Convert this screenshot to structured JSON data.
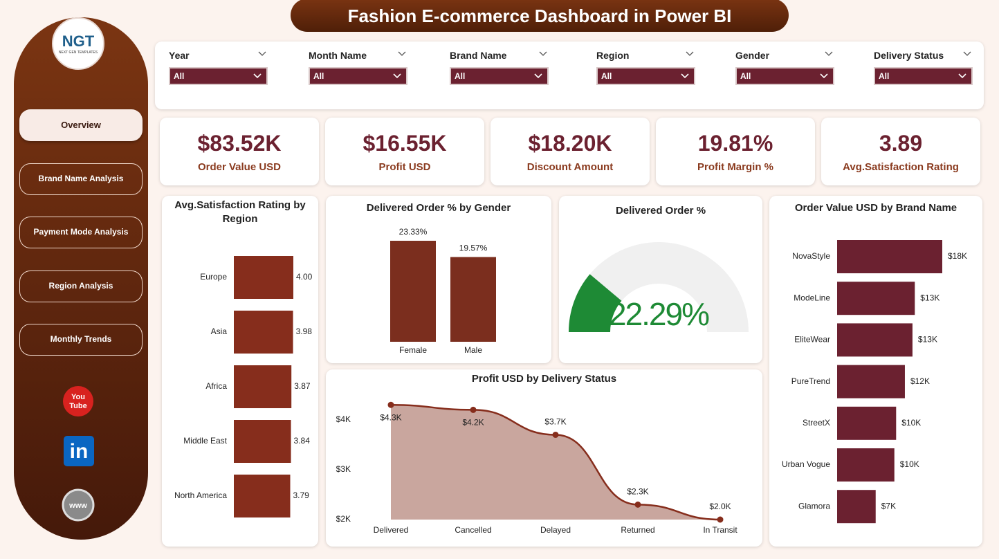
{
  "header": {
    "title": "Fashion E-commerce Dashboard in Power BI"
  },
  "logo": {
    "initials": "NGT",
    "tagline": "NEXT GEN TEMPLATES"
  },
  "nav": [
    {
      "label": "Overview",
      "active": true
    },
    {
      "label": "Brand Name Analysis",
      "active": false
    },
    {
      "label": "Payment Mode Analysis",
      "active": false
    },
    {
      "label": "Region Analysis",
      "active": false
    },
    {
      "label": "Monthly Trends",
      "active": false
    }
  ],
  "icons": {
    "youtube": [
      "You",
      "Tube"
    ],
    "linkedin": "in",
    "web": "www"
  },
  "filters": [
    {
      "label": "Year",
      "value": "All"
    },
    {
      "label": "Month Name",
      "value": "All"
    },
    {
      "label": "Brand Name",
      "value": "All"
    },
    {
      "label": "Region",
      "value": "All"
    },
    {
      "label": "Gender",
      "value": "All"
    },
    {
      "label": "Delivery Status",
      "value": "All"
    }
  ],
  "kpis": [
    {
      "value": "$83.52K",
      "label": "Order Value USD"
    },
    {
      "value": "$16.55K",
      "label": "Profit USD"
    },
    {
      "value": "$18.20K",
      "label": "Discount Amount"
    },
    {
      "value": "19.81%",
      "label": "Profit Margin %"
    },
    {
      "value": "3.89",
      "label": "Avg.Satisfaction Rating"
    }
  ],
  "chart_data": [
    {
      "type": "bar",
      "horizontal": true,
      "title": "Avg.Satisfaction Rating by Region",
      "color": "#862d1c",
      "categories": [
        "Europe",
        "Asia",
        "Africa",
        "Middle East",
        "North America"
      ],
      "values": [
        4.0,
        3.98,
        3.87,
        3.84,
        3.79
      ],
      "value_labels": [
        "4.00",
        "3.98",
        "3.87",
        "3.84",
        "3.79"
      ]
    },
    {
      "type": "bar",
      "horizontal": false,
      "title": "Delivered Order % by Gender",
      "color": "#7b2e1e",
      "categories": [
        "Female",
        "Male"
      ],
      "values": [
        23.33,
        19.57
      ],
      "value_labels": [
        "23.33%",
        "19.57%"
      ]
    },
    {
      "type": "gauge",
      "title": "Delivered Order %",
      "value": 22.29,
      "value_label": "22.29%",
      "ylim": [
        0,
        100
      ],
      "color": "#1e8a35",
      "track_color": "#f0f0f0"
    },
    {
      "type": "area",
      "title": "Profit USD by Delivery Status",
      "color": "#862d1c",
      "fill": "#c9a69e",
      "categories": [
        "Delivered",
        "Cancelled",
        "Delayed",
        "Returned",
        "In Transit"
      ],
      "values": [
        4300,
        4200,
        3700,
        2300,
        2000
      ],
      "value_labels": [
        "$4.3K",
        "$4.2K",
        "$3.7K",
        "$2.3K",
        "$2.0K"
      ],
      "ylim": [
        2000,
        4400
      ],
      "yticks": [
        {
          "value": 2000,
          "label": "$2K"
        },
        {
          "value": 3000,
          "label": "$3K"
        },
        {
          "value": 4000,
          "label": "$4K"
        }
      ]
    },
    {
      "type": "bar",
      "horizontal": true,
      "title": "Order Value USD by Brand Name",
      "color": "#6b2130",
      "categories": [
        "NovaStyle",
        "ModeLine",
        "EliteWear",
        "PureTrend",
        "StreetX",
        "Urban Vogue",
        "Glamora"
      ],
      "values": [
        18000,
        13300,
        12900,
        11600,
        10100,
        9800,
        6600
      ],
      "value_labels": [
        "$18K",
        "$13K",
        "$13K",
        "$12K",
        "$10K",
        "$10K",
        "$7K"
      ]
    }
  ]
}
